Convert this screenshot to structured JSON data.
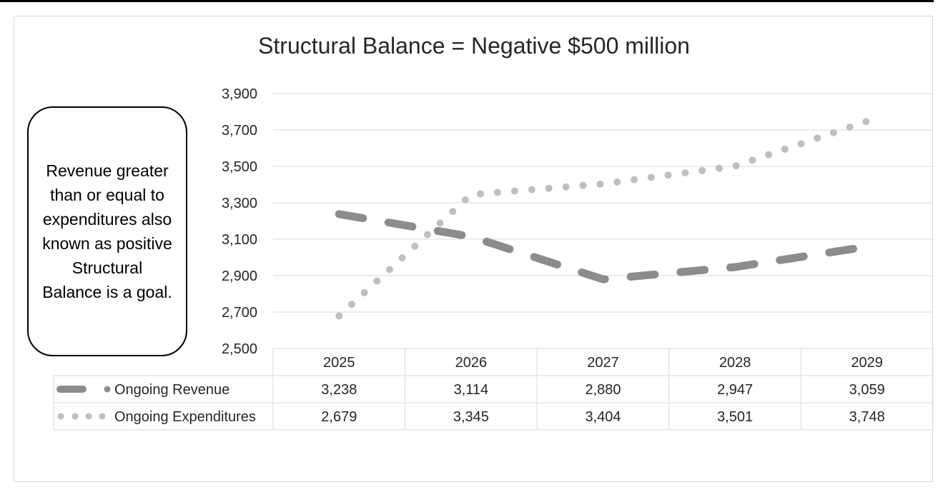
{
  "chart_data": {
    "type": "line",
    "title": "Structural Balance = Negative $500 million",
    "categories": [
      "2025",
      "2026",
      "2027",
      "2028",
      "2029"
    ],
    "yticks": [
      "3,900",
      "3,700",
      "3,500",
      "3,300",
      "3,100",
      "2,900",
      "2,700",
      "2,500"
    ],
    "ylim": [
      2500,
      3900
    ],
    "grid": true,
    "legend": "data-table",
    "series": [
      {
        "name": "Ongoing Revenue",
        "style": "dashed",
        "color": "#8c8c8c",
        "values": [
          3238,
          3114,
          2880,
          2947,
          3059
        ],
        "value_labels": [
          "3,238",
          "3,114",
          "2,880",
          "2,947",
          "3,059"
        ]
      },
      {
        "name": "Ongoing Expenditures",
        "style": "dotted",
        "color": "#bfbfbf",
        "values": [
          2679,
          3345,
          3404,
          3501,
          3748
        ],
        "value_labels": [
          "2,679",
          "3,345",
          "3,404",
          "3,501",
          "3,748"
        ]
      }
    ],
    "annotation": "Revenue greater than or equal to expenditures also known as positive Structural Balance is a goal."
  }
}
